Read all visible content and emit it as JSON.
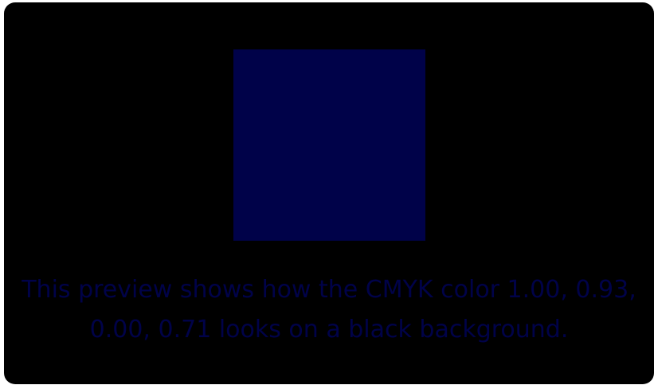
{
  "preview": {
    "swatch_color": "#000249",
    "background_color": "#000000",
    "caption": "This preview shows how the CMYK color 1.00, 0.93, 0.00, 0.71 looks on a black background."
  }
}
